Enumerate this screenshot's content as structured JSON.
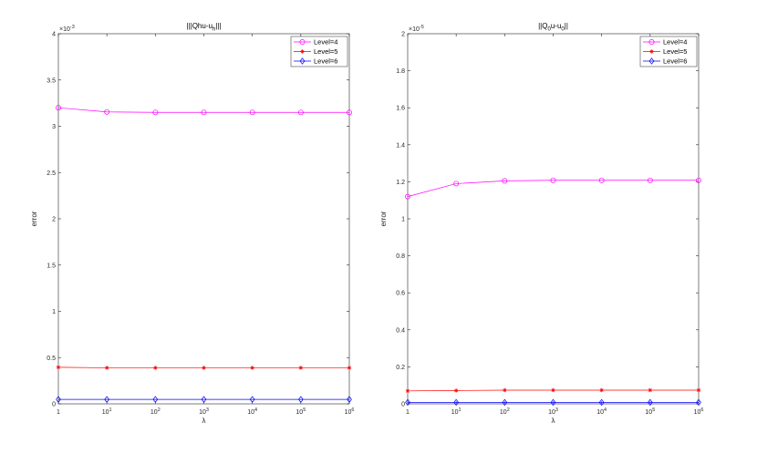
{
  "chart_data": [
    {
      "type": "line",
      "title": "|||Qhu-u_h|||",
      "title_main": "|||Qhu-u",
      "title_sub": "h",
      "title_end": "|||",
      "xlabel": "λ",
      "ylabel": "error",
      "x": [
        1,
        10,
        100,
        1000,
        10000,
        100000,
        1000000
      ],
      "x_tick_labels": [
        {
          "base": "1",
          "exp": ""
        },
        {
          "base": "10",
          "exp": "1"
        },
        {
          "base": "10",
          "exp": "2"
        },
        {
          "base": "10",
          "exp": "3"
        },
        {
          "base": "10",
          "exp": "4"
        },
        {
          "base": "10",
          "exp": "5"
        },
        {
          "base": "10",
          "exp": "6"
        }
      ],
      "xscale": "log",
      "ylim": [
        0,
        0.004
      ],
      "y_ticks": [
        0,
        0.0005,
        0.001,
        0.0015,
        0.002,
        0.0025,
        0.003,
        0.0035,
        0.004
      ],
      "y_tick_labels": [
        "0",
        "0.5",
        "1",
        "1.5",
        "2",
        "2.5",
        "3",
        "3.5",
        "4"
      ],
      "y_exponent_base": "×10",
      "y_exponent": "-3",
      "grid": false,
      "legend": "top-right",
      "series": [
        {
          "name": "Level=4",
          "color": "#ff00ff",
          "marker": "circle",
          "values": [
            0.0032,
            0.003155,
            0.00315,
            0.00315,
            0.00315,
            0.00315,
            0.00315
          ]
        },
        {
          "name": "Level=5",
          "color": "#ff0000",
          "marker": "star",
          "values": [
            0.000395,
            0.00039,
            0.00039,
            0.00039,
            0.00039,
            0.00039,
            0.00039
          ]
        },
        {
          "name": "Level=6",
          "color": "#0000ff",
          "marker": "diamond",
          "values": [
            4.8e-05,
            4.8e-05,
            4.8e-05,
            4.8e-05,
            4.8e-05,
            4.8e-05,
            4.8e-05
          ]
        }
      ]
    },
    {
      "type": "line",
      "title": "||Q_0u-u_0||",
      "title_main": "||Q",
      "title_sub": "0",
      "title_mid": "u-u",
      "title_sub2": "0",
      "title_end": "||",
      "xlabel": "λ",
      "ylabel": "error",
      "x": [
        1,
        10,
        100,
        1000,
        10000,
        100000,
        1000000
      ],
      "x_tick_labels": [
        {
          "base": "1",
          "exp": ""
        },
        {
          "base": "10",
          "exp": "1"
        },
        {
          "base": "10",
          "exp": "2"
        },
        {
          "base": "10",
          "exp": "3"
        },
        {
          "base": "10",
          "exp": "4"
        },
        {
          "base": "10",
          "exp": "5"
        },
        {
          "base": "10",
          "exp": "6"
        }
      ],
      "xscale": "log",
      "ylim": [
        0,
        2e-05
      ],
      "y_ticks": [
        0,
        2e-06,
        4e-06,
        6e-06,
        8e-06,
        1e-05,
        1.2e-05,
        1.4e-05,
        1.6e-05,
        1.8e-05,
        2e-05
      ],
      "y_tick_labels": [
        "0",
        "0.2",
        "0.4",
        "0.6",
        "0.8",
        "1",
        "1.2",
        "1.4",
        "1.6",
        "1.8",
        "2"
      ],
      "y_exponent_base": "×10",
      "y_exponent": "-5",
      "grid": false,
      "legend": "top-right",
      "series": [
        {
          "name": "Level=4",
          "color": "#ff00ff",
          "marker": "circle",
          "values": [
            1.12e-05,
            1.19e-05,
            1.205e-05,
            1.208e-05,
            1.208e-05,
            1.208e-05,
            1.208e-05
          ]
        },
        {
          "name": "Level=5",
          "color": "#ff0000",
          "marker": "star",
          "values": [
            7e-07,
            7.2e-07,
            7.4e-07,
            7.4e-07,
            7.4e-07,
            7.4e-07,
            7.4e-07
          ]
        },
        {
          "name": "Level=6",
          "color": "#0000ff",
          "marker": "diamond",
          "values": [
            8e-08,
            8e-08,
            8e-08,
            8e-08,
            8e-08,
            8e-08,
            8e-08
          ]
        }
      ]
    }
  ]
}
